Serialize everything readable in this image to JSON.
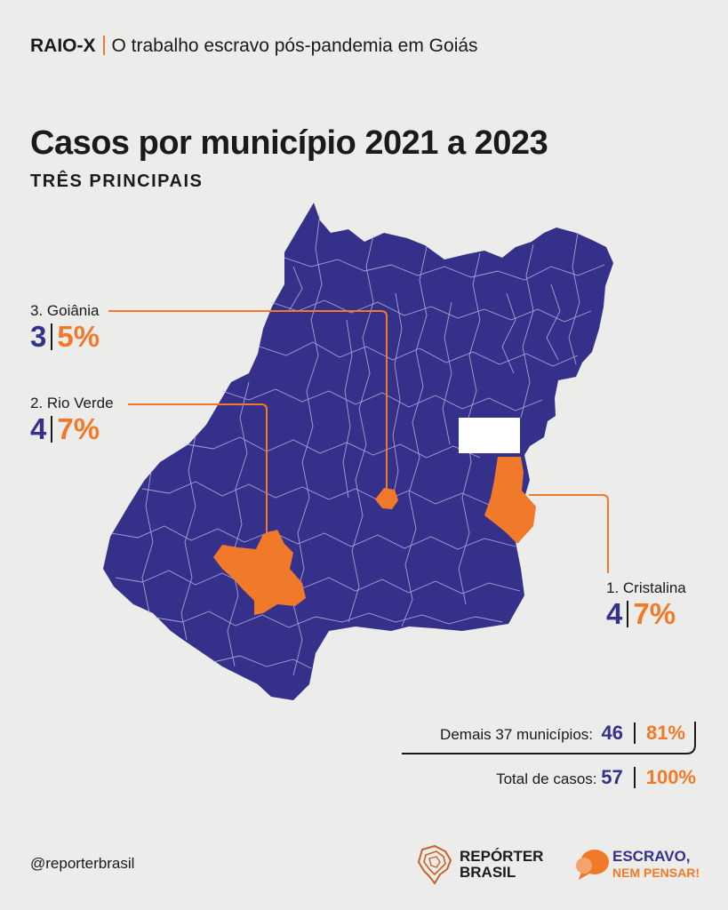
{
  "header": {
    "tag": "RAIO-X",
    "text": "O trabalho escravo pós-pandemia em Goiás"
  },
  "title": "Casos por município 2021 a 2023",
  "subtitle": "TRÊS PRINCIPAIS",
  "colors": {
    "map": "#35318a",
    "highlight": "#f07a2a",
    "background": "#ececea",
    "borders": "#b9b6e0"
  },
  "callouts": [
    {
      "name": "3. Goiânia",
      "cases": "3",
      "percent": "5%"
    },
    {
      "name": "2. Rio Verde",
      "cases": "4",
      "percent": "7%"
    },
    {
      "name": "1. Cristalina",
      "cases": "4",
      "percent": "7%"
    }
  ],
  "summary": {
    "others_label": "Demais 37 municípios:",
    "others_cases": "46",
    "others_percent": "81%",
    "total_label": "Total de casos:",
    "total_cases": "57",
    "total_percent": "100%"
  },
  "footer": {
    "handle": "@reporterbrasil",
    "logo1_line1": "REPÓRTER",
    "logo1_line2": "BRASIL",
    "logo2_line1": "ESCRAVO,",
    "logo2_line2": "NEM PENSAR!"
  }
}
